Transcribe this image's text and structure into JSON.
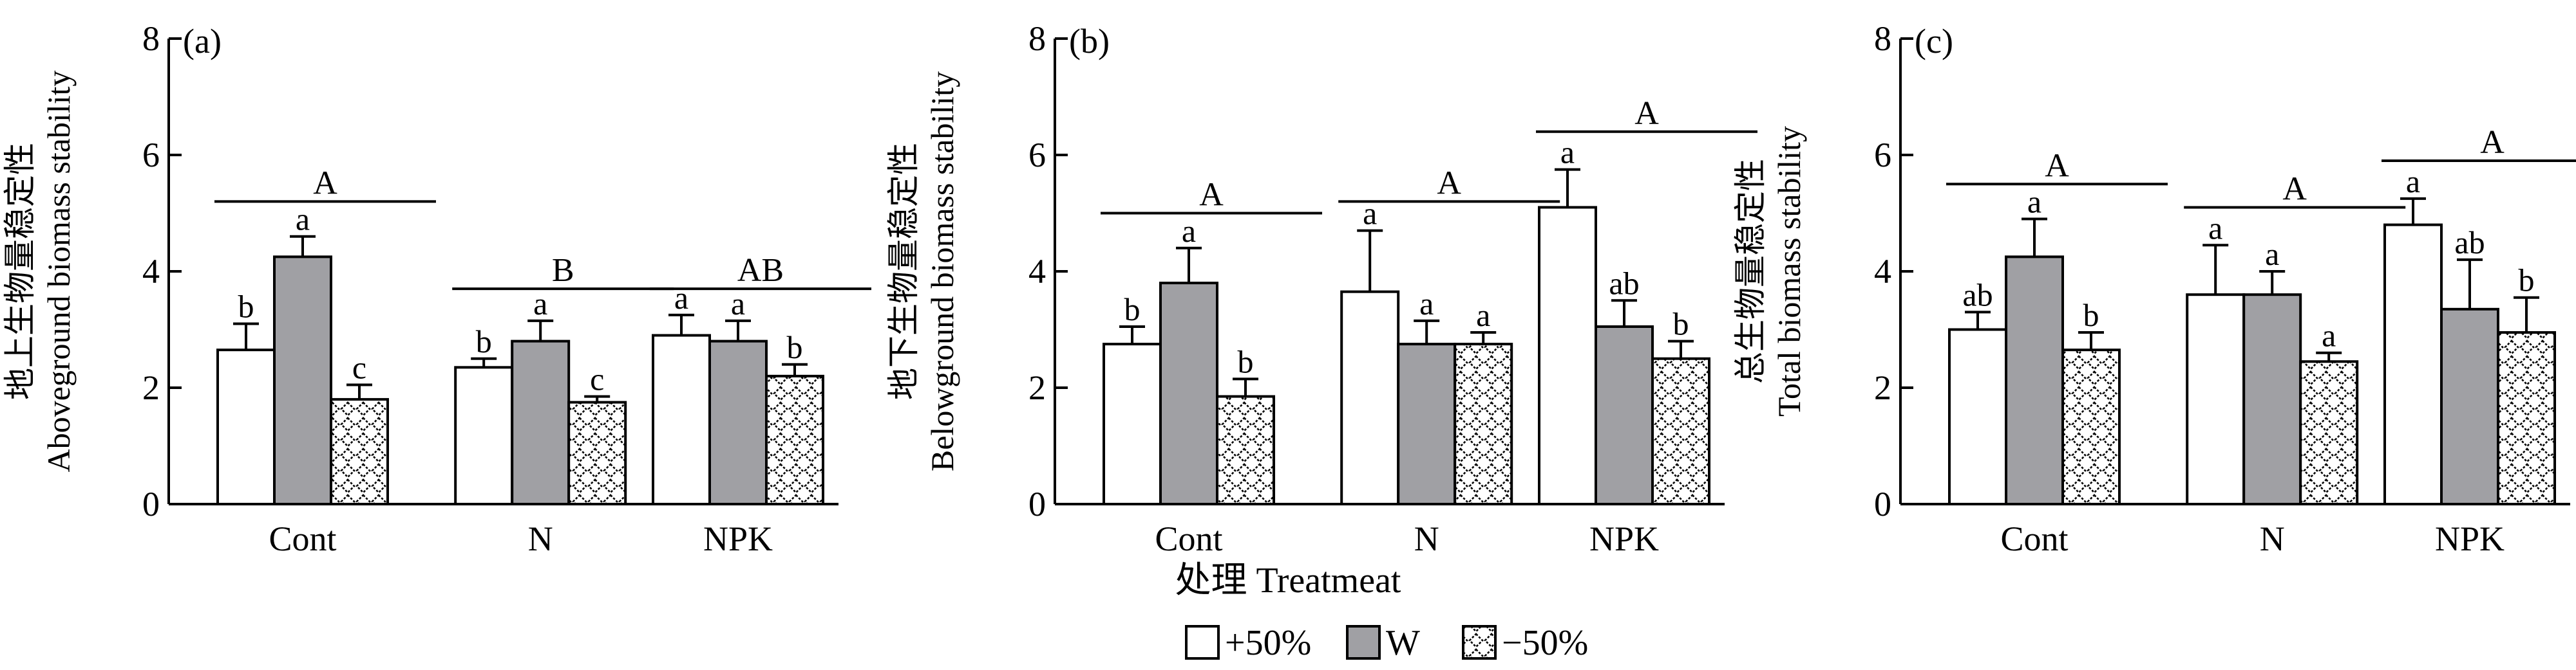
{
  "chart_data": {
    "type": "bar",
    "xlabel": "处理 Treatmeat",
    "categories": [
      "Cont",
      "N",
      "NPK"
    ],
    "legend": [
      {
        "name": "+50%",
        "color": "#ffffff",
        "pattern": "none"
      },
      {
        "name": "W",
        "color": "#a0a0a4",
        "pattern": "none"
      },
      {
        "name": "−50%",
        "color": "#ffffff",
        "pattern": "checker"
      }
    ],
    "panels": [
      {
        "label": "(a)",
        "ylabel_zh": "地上生物量稳定性",
        "ylabel_en": "Aboveground biomass stability",
        "ylim": [
          0,
          8
        ],
        "yticks": [
          0,
          2,
          4,
          6,
          8
        ],
        "series": [
          {
            "name": "+50%",
            "values": [
              2.65,
              2.35,
              2.9
            ],
            "errors": [
              0.45,
              0.15,
              0.35
            ],
            "letters": [
              "b",
              "b",
              "a"
            ]
          },
          {
            "name": "W",
            "values": [
              4.25,
              2.8,
              2.8
            ],
            "errors": [
              0.35,
              0.35,
              0.35
            ],
            "letters": [
              "a",
              "a",
              "a"
            ]
          },
          {
            "name": "−50%",
            "values": [
              1.8,
              1.75,
              2.2
            ],
            "errors": [
              0.25,
              0.1,
              0.2
            ],
            "letters": [
              "c",
              "c",
              "b"
            ]
          }
        ],
        "group_letters": [
          "A",
          "B",
          "AB"
        ],
        "group_letter_heights": [
          5.2,
          3.7,
          3.7
        ]
      },
      {
        "label": "(b)",
        "ylabel_zh": "地下生物量稳定性",
        "ylabel_en": "Belowground biomass stability",
        "ylim": [
          0,
          8
        ],
        "yticks": [
          0,
          2,
          4,
          6,
          8
        ],
        "series": [
          {
            "name": "+50%",
            "values": [
              2.75,
              3.65,
              5.1
            ],
            "errors": [
              0.3,
              1.05,
              0.65
            ],
            "letters": [
              "b",
              "a",
              "a"
            ]
          },
          {
            "name": "W",
            "values": [
              3.8,
              2.75,
              3.05
            ],
            "errors": [
              0.6,
              0.4,
              0.45
            ],
            "letters": [
              "a",
              "a",
              "ab"
            ]
          },
          {
            "name": "−50%",
            "values": [
              1.85,
              2.75,
              2.5
            ],
            "errors": [
              0.3,
              0.2,
              0.3
            ],
            "letters": [
              "b",
              "a",
              "b"
            ]
          }
        ],
        "group_letters": [
          "A",
          "A",
          "A"
        ],
        "group_letter_heights": [
          5.0,
          5.2,
          6.4
        ]
      },
      {
        "label": "(c)",
        "ylabel_zh": "总生物量稳定性",
        "ylabel_en": "Total biomass stability",
        "ylim": [
          0,
          8
        ],
        "yticks": [
          0,
          2,
          4,
          6,
          8
        ],
        "series": [
          {
            "name": "+50%",
            "values": [
              3.0,
              3.6,
              4.8
            ],
            "errors": [
              0.3,
              0.85,
              0.45
            ],
            "letters": [
              "ab",
              "a",
              "a"
            ]
          },
          {
            "name": "W",
            "values": [
              4.25,
              3.6,
              3.35
            ],
            "errors": [
              0.65,
              0.4,
              0.85
            ],
            "letters": [
              "a",
              "a",
              "ab"
            ]
          },
          {
            "name": "−50%",
            "values": [
              2.65,
              2.45,
              2.95
            ],
            "errors": [
              0.3,
              0.15,
              0.6
            ],
            "letters": [
              "b",
              "a",
              "b"
            ]
          }
        ],
        "group_letters": [
          "A",
          "A",
          "A"
        ],
        "group_letter_heights": [
          5.5,
          5.1,
          5.9
        ]
      }
    ]
  }
}
